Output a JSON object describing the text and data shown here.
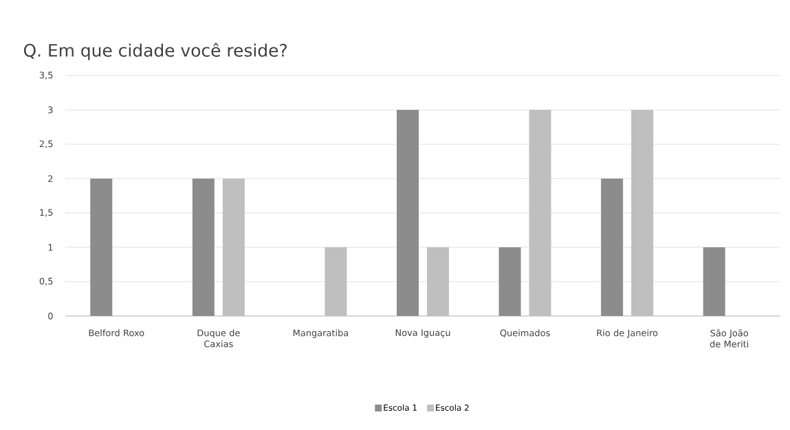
{
  "chart_data": {
    "type": "bar",
    "title": "Q. Em que cidade você reside?",
    "categories": [
      "Belford Roxo",
      "Duque de Caxias",
      "Mangaratiba",
      "Nova Iguaçu",
      "Queimados",
      "Rio de Janeiro",
      "São João de Meriti"
    ],
    "series": [
      {
        "name": "Escola 1",
        "color": "#8c8c8c",
        "values": [
          2,
          2,
          0,
          3,
          1,
          2,
          1
        ]
      },
      {
        "name": "Escola 2",
        "color": "#bfbfbf",
        "values": [
          0,
          2,
          1,
          1,
          3,
          3,
          0
        ]
      }
    ],
    "ylim": [
      0,
      3.5
    ],
    "yticks": [
      0,
      {
        "value": 0.5,
        "label": "0,5"
      },
      1,
      {
        "value": 1.5,
        "label": "1,5"
      },
      2,
      {
        "value": 2.5,
        "label": "2,5"
      },
      3,
      {
        "value": 3.5,
        "label": "3,5"
      }
    ],
    "grid": "y",
    "legend": "bottom"
  }
}
